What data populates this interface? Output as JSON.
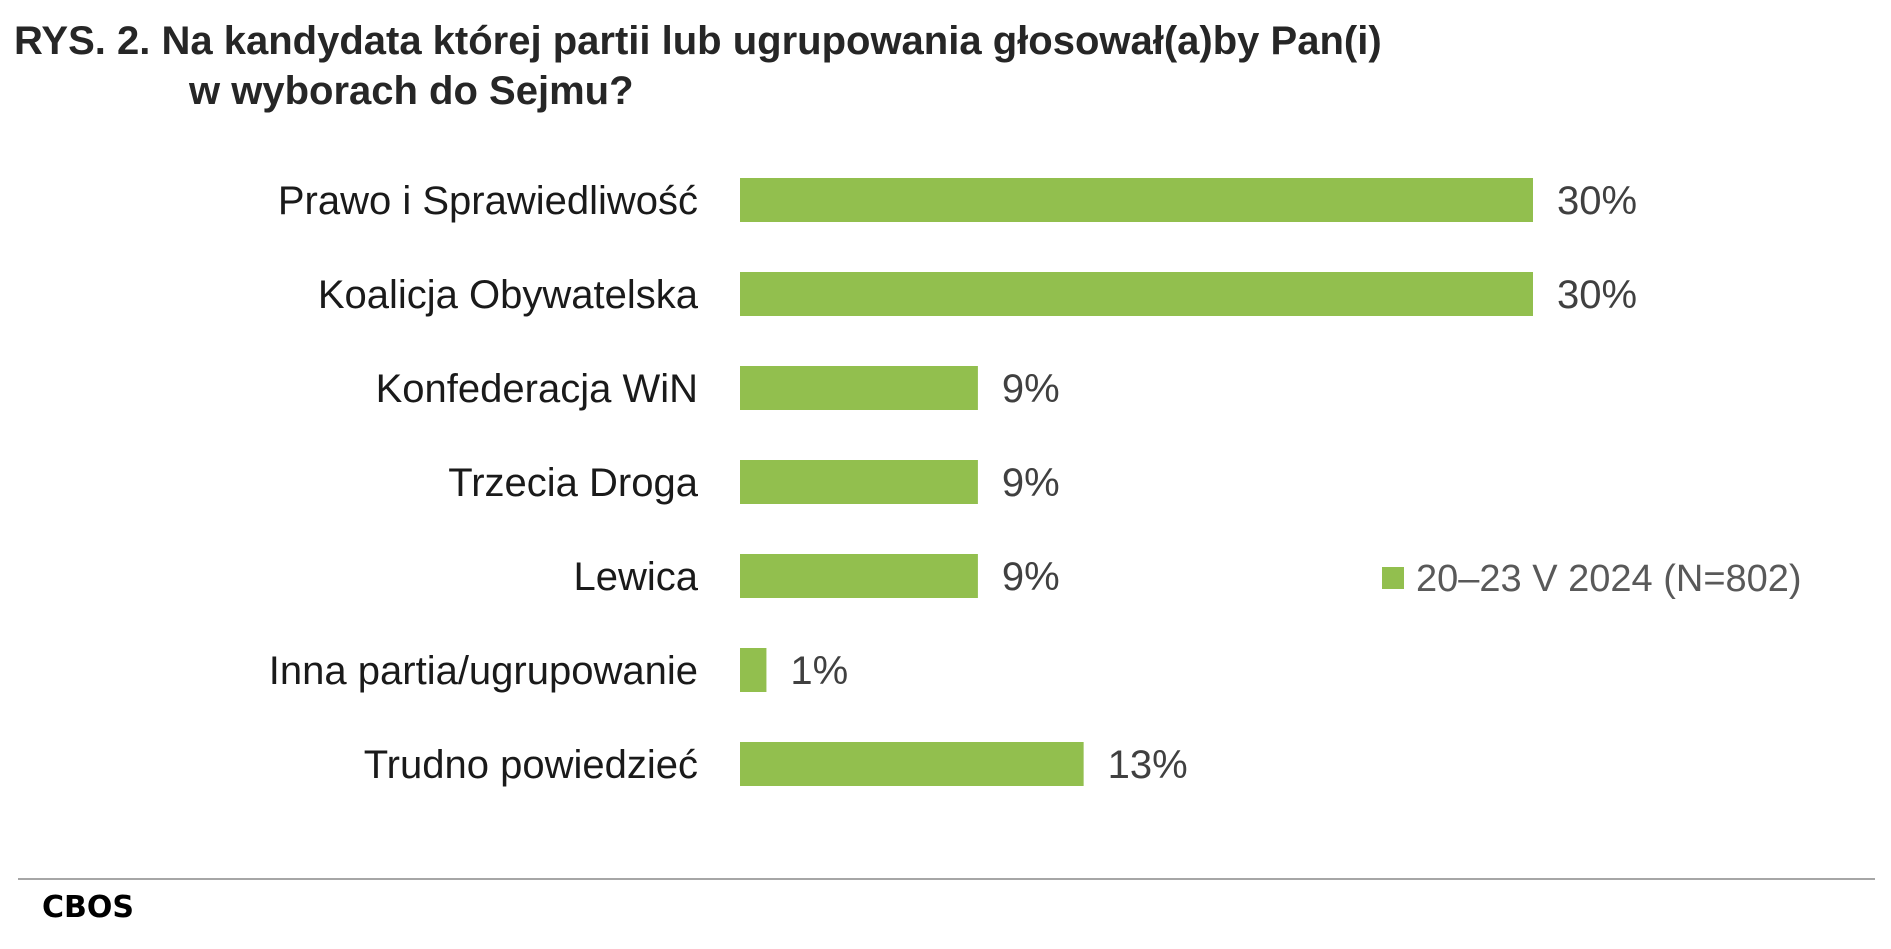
{
  "chart_data": {
    "type": "bar",
    "orientation": "horizontal",
    "title_line1": "RYS. 2. Na kandydata której partii lub ugrupowania głosował(a)by Pan(i)",
    "title_line2": "w wyborach do Sejmu?",
    "categories": [
      "Prawo i Sprawiedliwość",
      "Koalicja Obywatelska",
      "Konfederacja WiN",
      "Trzecia Droga",
      "Lewica",
      "Inna partia/ugrupowanie",
      "Trudno powiedzieć"
    ],
    "series": [
      {
        "name": "20–23 V 2024 (N=802)",
        "values": [
          30,
          30,
          9,
          9,
          9,
          1,
          13
        ],
        "labels": [
          "30%",
          "30%",
          "9%",
          "9%",
          "9%",
          "1%",
          "13%"
        ]
      }
    ],
    "unit": "%",
    "xlim": [
      0,
      30
    ],
    "grid": false,
    "legend_position": "right",
    "colors": {
      "bar": "#92bf4e",
      "category_text": "#1a1a1a",
      "value_text": "#404040",
      "legend_text": "#595959"
    }
  },
  "source": "CBOS"
}
